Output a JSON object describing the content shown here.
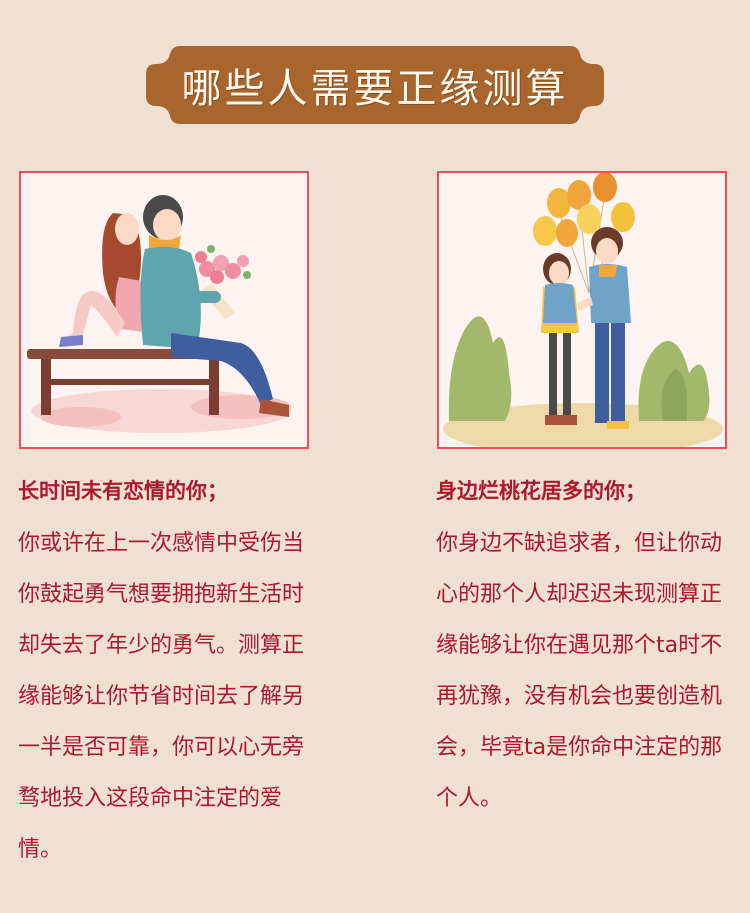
{
  "banner": {
    "title": "哪些人需要正缘测算",
    "color": "#a8662e"
  },
  "illustrations": {
    "left": "couple-on-bench-illustration",
    "right": "couple-with-balloons-illustration"
  },
  "left_column": {
    "heading": "长时间未有恋情的你；",
    "body": "你或许在上一次感情中受伤当你鼓起勇气想要拥抱新生活时却失去了年少的勇气。测算正缘能够让你节省时间去了解另一半是否可靠，你可以心无旁骛地投入这段命中注定的爱情。"
  },
  "right_column": {
    "heading": "身边烂桃花居多的你；",
    "body": "你身边不缺追求者，但让你动心的那个人却迟迟未现测算正缘能够让你在遇见那个ta时不再犹豫，没有机会也要创造机会，毕竟ta是你命中注定的那个人。"
  },
  "colors": {
    "background": "#f0e0d2",
    "text": "#a81a2c",
    "card_border": "#e6505f"
  }
}
